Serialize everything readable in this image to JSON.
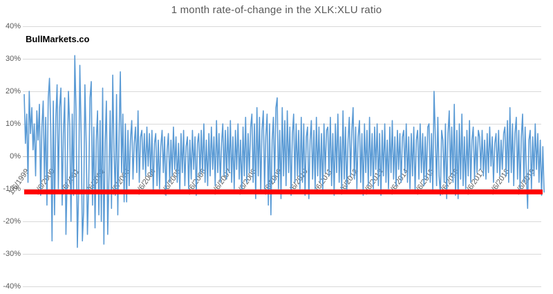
{
  "header": {
    "title": "1 month rate-of-change in the XLK:XLU ratio",
    "watermark": "BullMarkets.co"
  },
  "chart_data": {
    "type": "line",
    "title": "1 month rate-of-change in the XLK:XLU ratio",
    "xlabel": "",
    "ylabel": "",
    "ylim": [
      -40,
      40
    ],
    "y_tick_step": 10,
    "y_tick_labels": [
      "40%",
      "30%",
      "20%",
      "10%",
      "0%",
      "-10%",
      "-20%",
      "-30%",
      "-40%"
    ],
    "x_tick_labels": [
      "1/6/1999",
      "1/6/2000",
      "1/6/2001",
      "1/6/2002",
      "1/6/2003",
      "1/6/2004",
      "1/6/2005",
      "1/6/2006",
      "1/6/2007",
      "1/6/2008",
      "1/6/2009",
      "1/6/2010",
      "1/6/2011",
      "1/6/2012",
      "1/6/2013",
      "1/6/2014",
      "1/6/2015",
      "1/6/2016",
      "1/6/2017",
      "1/6/2018",
      "1/6/2019"
    ],
    "grid": true,
    "legend": "none",
    "colors": {
      "series": "#5B9BD5",
      "reference": "#FF0000",
      "gridline": "#D9D9D9",
      "axis_text": "#595959"
    },
    "reference_line": {
      "value": -11,
      "color": "#FF0000"
    },
    "series": [
      {
        "name": "1 month rate-of-change in XLK:XLU",
        "color": "#5B9BD5",
        "start_year": 1999,
        "points_per_year": 20,
        "values": [
          19,
          4,
          13,
          -8,
          20,
          7,
          15,
          2,
          10,
          -6,
          14,
          5,
          16,
          -12,
          9,
          17,
          -7,
          12,
          -15,
          18,
          24,
          9,
          -26,
          17,
          -18,
          12,
          22,
          -10,
          15,
          21,
          -15,
          7,
          18,
          -24,
          -6,
          20,
          9,
          -20,
          13,
          -12,
          31,
          14,
          -28,
          -11,
          28,
          7,
          -26,
          -17,
          22,
          4,
          -24,
          -9,
          18,
          23,
          -15,
          9,
          -22,
          5,
          14,
          -18,
          11,
          -20,
          21,
          -27,
          4,
          17,
          -24,
          -7,
          14,
          -16,
          25,
          2,
          -12,
          19,
          -18,
          7,
          26,
          -5,
          13,
          -14,
          10,
          -14,
          8,
          -9,
          5,
          11,
          -7,
          4,
          9,
          -5,
          14,
          -8,
          6,
          8,
          -4,
          7,
          -6,
          9,
          -3,
          7,
          -6,
          8,
          -11,
          4,
          7,
          -9,
          5,
          -10,
          3,
          8,
          -5,
          6,
          -12,
          2,
          7,
          -8,
          5,
          -6,
          9,
          -4,
          6,
          -8,
          4,
          -11,
          7,
          -5,
          8,
          -9,
          3,
          6,
          -10,
          5,
          -7,
          8,
          -4,
          6,
          -12,
          4,
          7,
          -6,
          8,
          -5,
          10,
          -8,
          5,
          -9,
          7,
          -6,
          9,
          -4,
          6,
          -9,
          11,
          -5,
          7,
          -8,
          4,
          10,
          -6,
          8,
          -7,
          9,
          -5,
          11,
          -8,
          6,
          -10,
          8,
          -4,
          10,
          -7,
          5,
          -11,
          9,
          -6,
          12,
          -8,
          7,
          -5,
          9,
          13,
          -8,
          10,
          -13,
          15,
          -6,
          12,
          -11,
          8,
          14,
          -10,
          6,
          13,
          -15,
          10,
          -18,
          5,
          12,
          -8,
          15,
          18,
          -10,
          8,
          -13,
          15,
          -6,
          11,
          -9,
          14,
          -5,
          9,
          -12,
          7,
          13,
          -8,
          10,
          -6,
          8,
          -10,
          12,
          -8,
          10,
          -12,
          6,
          9,
          -13,
          5,
          11,
          -7,
          8,
          -10,
          12,
          -6,
          9,
          -8,
          7,
          -11,
          10,
          -5,
          8,
          9,
          -6,
          12,
          -9,
          7,
          -12,
          10,
          -5,
          13,
          -8,
          6,
          -10,
          14,
          -7,
          9,
          -11,
          5,
          12,
          -6,
          8,
          15,
          -7,
          9,
          -10,
          6,
          11,
          -8,
          7,
          -12,
          10,
          -5,
          8,
          -9,
          12,
          -6,
          7,
          -10,
          9,
          -4,
          10,
          -9,
          7,
          -12,
          8,
          -6,
          10,
          -8,
          5,
          -10,
          9,
          -5,
          11,
          -7,
          6,
          -9,
          8,
          -4,
          7,
          -8,
          6,
          8,
          -5,
          10,
          -8,
          6,
          -10,
          7,
          -6,
          9,
          -11,
          5,
          8,
          -7,
          10,
          -5,
          7,
          -9,
          6,
          -7,
          9,
          10,
          -8,
          7,
          -11,
          20,
          6,
          -9,
          12,
          -6,
          -12,
          8,
          5,
          -8,
          10,
          -13,
          7,
          14,
          -6,
          9,
          -8,
          16,
          -12,
          8,
          -13,
          10,
          -7,
          13,
          -9,
          6,
          -10,
          8,
          -6,
          11,
          -8,
          5,
          9,
          -7,
          6,
          -5,
          8,
          6,
          -4,
          8,
          -6,
          5,
          -7,
          7,
          -5,
          9,
          -3,
          6,
          -8,
          4,
          7,
          -5,
          8,
          -6,
          5,
          -4,
          7,
          9,
          -6,
          11,
          -8,
          15,
          -5,
          10,
          -9,
          7,
          12,
          -7,
          8,
          -10,
          6,
          13,
          -8,
          9,
          -6,
          -16,
          5,
          8,
          -10,
          6,
          -6,
          10,
          -4,
          7,
          -8,
          5,
          -12,
          3,
          -11
        ]
      }
    ]
  }
}
